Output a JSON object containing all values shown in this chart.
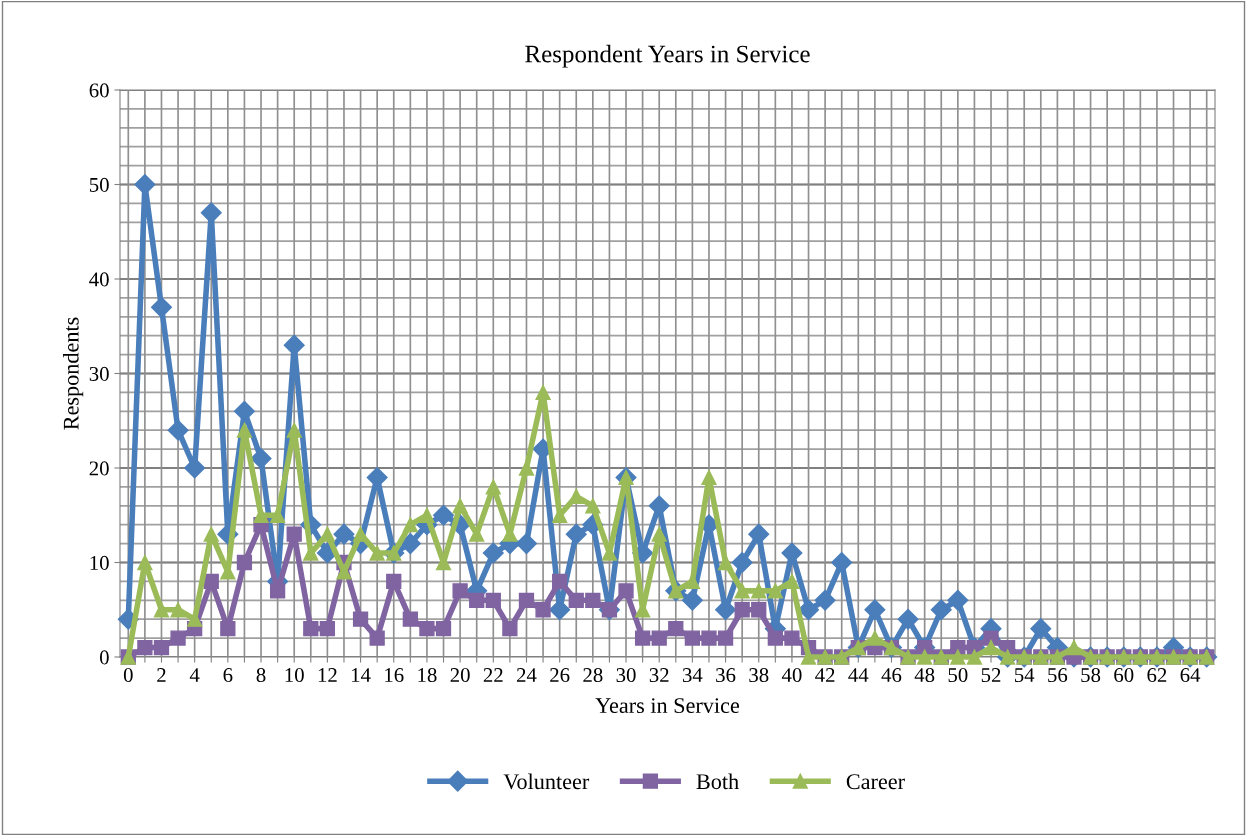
{
  "chart_data": {
    "type": "line",
    "title": "Respondent Years in Service",
    "xlabel": "Years in Service",
    "ylabel": "Respondents",
    "categories": [
      "0",
      null,
      "2",
      null,
      "4",
      null,
      "6",
      null,
      "8",
      null,
      "10",
      null,
      "12",
      null,
      "14",
      null,
      "16",
      null,
      "18",
      null,
      "20",
      null,
      "22",
      null,
      "24",
      null,
      "26",
      null,
      "28",
      null,
      "30",
      null,
      "32",
      null,
      "34",
      null,
      "36",
      null,
      "38",
      null,
      "40",
      null,
      "42",
      null,
      "44",
      null,
      "46",
      null,
      "48",
      null,
      "50",
      null,
      "52",
      null,
      "54",
      null,
      "56",
      null,
      "58",
      null,
      "60",
      null,
      "62",
      null,
      "64",
      null
    ],
    "series": [
      {
        "name": "Volunteer",
        "color": "#4a7ebb",
        "marker": "diamond",
        "values": [
          4,
          50,
          37,
          24,
          20,
          47,
          13,
          26,
          21,
          8,
          33,
          14,
          11,
          13,
          12,
          19,
          11,
          12,
          14,
          15,
          14,
          7,
          11,
          12,
          12,
          22,
          5,
          13,
          14,
          5,
          19,
          11,
          16,
          7,
          6,
          14,
          5,
          10,
          13,
          3,
          11,
          5,
          6,
          10,
          1,
          5,
          1,
          4,
          1,
          5,
          6,
          1,
          3,
          0,
          0,
          3,
          1,
          0,
          0,
          0,
          0,
          0,
          0,
          1,
          0,
          0
        ]
      },
      {
        "name": "Both",
        "color": "#8064a2",
        "marker": "square",
        "values": [
          0,
          1,
          1,
          2,
          3,
          8,
          3,
          10,
          14,
          7,
          13,
          3,
          3,
          10,
          4,
          2,
          8,
          4,
          3,
          3,
          7,
          6,
          6,
          3,
          6,
          5,
          8,
          6,
          6,
          5,
          7,
          2,
          2,
          3,
          2,
          2,
          2,
          5,
          5,
          2,
          2,
          1,
          0,
          0,
          1,
          1,
          1,
          0,
          1,
          0,
          1,
          1,
          2,
          1,
          0,
          0,
          0,
          0,
          0,
          0,
          0,
          0,
          0,
          0,
          0,
          0
        ]
      },
      {
        "name": "Career",
        "color": "#9bbb59",
        "marker": "triangle",
        "values": [
          0,
          10,
          5,
          5,
          4,
          13,
          9,
          24,
          15,
          15,
          24,
          11,
          13,
          9,
          13,
          11,
          11,
          14,
          15,
          10,
          16,
          13,
          18,
          13,
          20,
          28,
          15,
          17,
          16,
          11,
          19,
          5,
          13,
          7,
          8,
          19,
          10,
          7,
          7,
          7,
          8,
          0,
          0,
          0,
          1,
          2,
          1,
          0,
          0,
          0,
          0,
          0,
          1,
          0,
          0,
          0,
          0,
          1,
          0,
          0,
          0,
          0,
          0,
          0,
          0,
          0
        ]
      }
    ],
    "ylim": [
      0,
      60
    ],
    "yticks": [
      0,
      10,
      20,
      30,
      40,
      50,
      60
    ],
    "grid": true,
    "legend": "bottom",
    "line_style": "solid"
  }
}
